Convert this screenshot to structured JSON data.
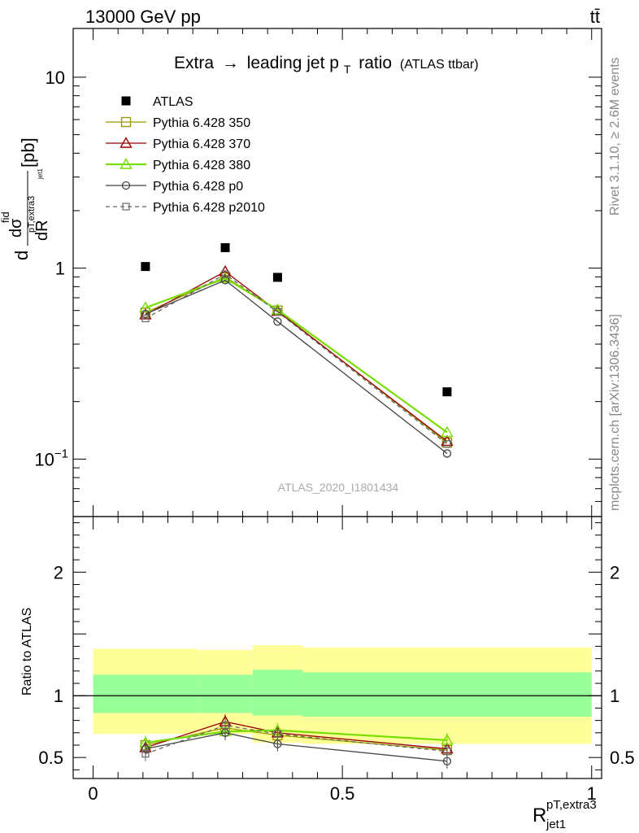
{
  "header": {
    "left": "13000 GeV pp",
    "right": "tt̄"
  },
  "side_labels": {
    "top": "Rivet 3.1.10, ≥ 2.6M events",
    "bottom": "mcplots.cern.ch [arXiv:1306.3436]"
  },
  "watermark": "ATLAS_2020_I1801434",
  "colors": {
    "atlas": "#000000",
    "p350": "#999900",
    "p370": "#990000",
    "p380": "#77dd00",
    "p0": "#444444",
    "p2010": "#666666",
    "band_outer": "#ffff99",
    "band_inner": "#99ff99"
  },
  "chart_data": [
    {
      "type": "scatter",
      "panel": "main",
      "title": "Extra → leading jet pT ratio",
      "title_parts": {
        "main": "Extra",
        "arrow": "→",
        "mid": "leading jet p",
        "sub": "T",
        "after": "ratio",
        "tag": "(ATLAS ttbar)"
      },
      "ylabel": "dσ^fid / dR^{pT,extra3}_{jet1} [pb]",
      "ylabel_parts": {
        "d1": "d",
        "sigma": "dσ",
        "fid": "fid",
        "pT": "pT,extra3",
        "jet": "jet1",
        "denom": "dR",
        "unit": "[pb]"
      },
      "yscale": "log",
      "ylim": [
        0.05,
        18
      ],
      "xlim": [
        -0.04,
        1.02
      ],
      "yticks": [
        {
          "label": "10",
          "value": 10
        },
        {
          "label": "1",
          "value": 1
        },
        {
          "label": "10",
          "sup": "−1",
          "value": 0.1
        }
      ],
      "legend_position": "top-left",
      "x": [
        0.105,
        0.265,
        0.37,
        0.71
      ],
      "series": [
        {
          "name": "ATLAS",
          "key": "atlas",
          "marker": "square-filled",
          "line": "none",
          "values": [
            1.02,
            1.28,
            0.895,
            0.225
          ]
        },
        {
          "name": "Pythia 6.428 350",
          "key": "p350",
          "marker": "square-open",
          "line": "solid",
          "values": [
            0.585,
            0.9,
            0.6,
            0.122
          ]
        },
        {
          "name": "Pythia 6.428 370",
          "key": "p370",
          "marker": "triangle-open",
          "line": "solid",
          "values": [
            0.57,
            0.96,
            0.595,
            0.124
          ]
        },
        {
          "name": "Pythia 6.428 380",
          "key": "p380",
          "marker": "triangle-open",
          "line": "solid-thick",
          "values": [
            0.62,
            0.885,
            0.605,
            0.138
          ]
        },
        {
          "name": "Pythia 6.428 p0",
          "key": "p0",
          "marker": "circle-open",
          "line": "solid",
          "values": [
            0.575,
            0.865,
            0.525,
            0.107
          ]
        },
        {
          "name": "Pythia 6.428 p2010",
          "key": "p2010",
          "marker": "square-open-small",
          "line": "dashed",
          "values": [
            0.545,
            0.93,
            0.59,
            0.12
          ]
        }
      ]
    },
    {
      "type": "line",
      "panel": "ratio",
      "ylabel": "Ratio to ATLAS",
      "xlabel": "R_{jet1}^{pT,extra3}",
      "xlabel_parts": {
        "main": "R",
        "sup": "pT,extra3",
        "sub": "jet1"
      },
      "ylim": [
        0.33,
        2.45
      ],
      "xlim": [
        -0.04,
        1.02
      ],
      "yticks": [
        {
          "label": "2",
          "value": 2
        },
        {
          "label": "1",
          "value": 1
        },
        {
          "label": "0.5",
          "value": 0.5
        }
      ],
      "xticks": [
        {
          "label": "0",
          "value": 0
        },
        {
          "label": "0.5",
          "value": 0.5
        },
        {
          "label": "1",
          "value": 1
        }
      ],
      "bands": [
        {
          "x0": 0.0,
          "x1": 0.21,
          "outer": [
            0.69,
            1.38
          ],
          "inner": [
            0.86,
            1.17
          ]
        },
        {
          "x0": 0.21,
          "x1": 0.32,
          "outer": [
            0.69,
            1.37
          ],
          "inner": [
            0.86,
            1.17
          ]
        },
        {
          "x0": 0.32,
          "x1": 0.42,
          "outer": [
            0.62,
            1.41
          ],
          "inner": [
            0.84,
            1.21
          ]
        },
        {
          "x0": 0.42,
          "x1": 1.0,
          "outer": [
            0.61,
            1.39
          ],
          "inner": [
            0.83,
            1.19
          ]
        }
      ],
      "x": [
        0.105,
        0.265,
        0.37,
        0.71
      ],
      "series": [
        {
          "name": "Pythia 6.428 350",
          "key": "p350",
          "values": [
            0.6,
            0.74,
            0.68,
            0.56
          ]
        },
        {
          "name": "Pythia 6.428 370",
          "key": "p370",
          "values": [
            0.58,
            0.79,
            0.7,
            0.57
          ]
        },
        {
          "name": "Pythia 6.428 380",
          "key": "p380",
          "values": [
            0.62,
            0.71,
            0.72,
            0.64
          ]
        },
        {
          "name": "Pythia 6.428 p0",
          "key": "p0",
          "values": [
            0.57,
            0.7,
            0.61,
            0.47
          ]
        },
        {
          "name": "Pythia 6.428 p2010",
          "key": "p2010",
          "values": [
            0.53,
            0.76,
            0.69,
            0.55
          ]
        }
      ]
    }
  ]
}
